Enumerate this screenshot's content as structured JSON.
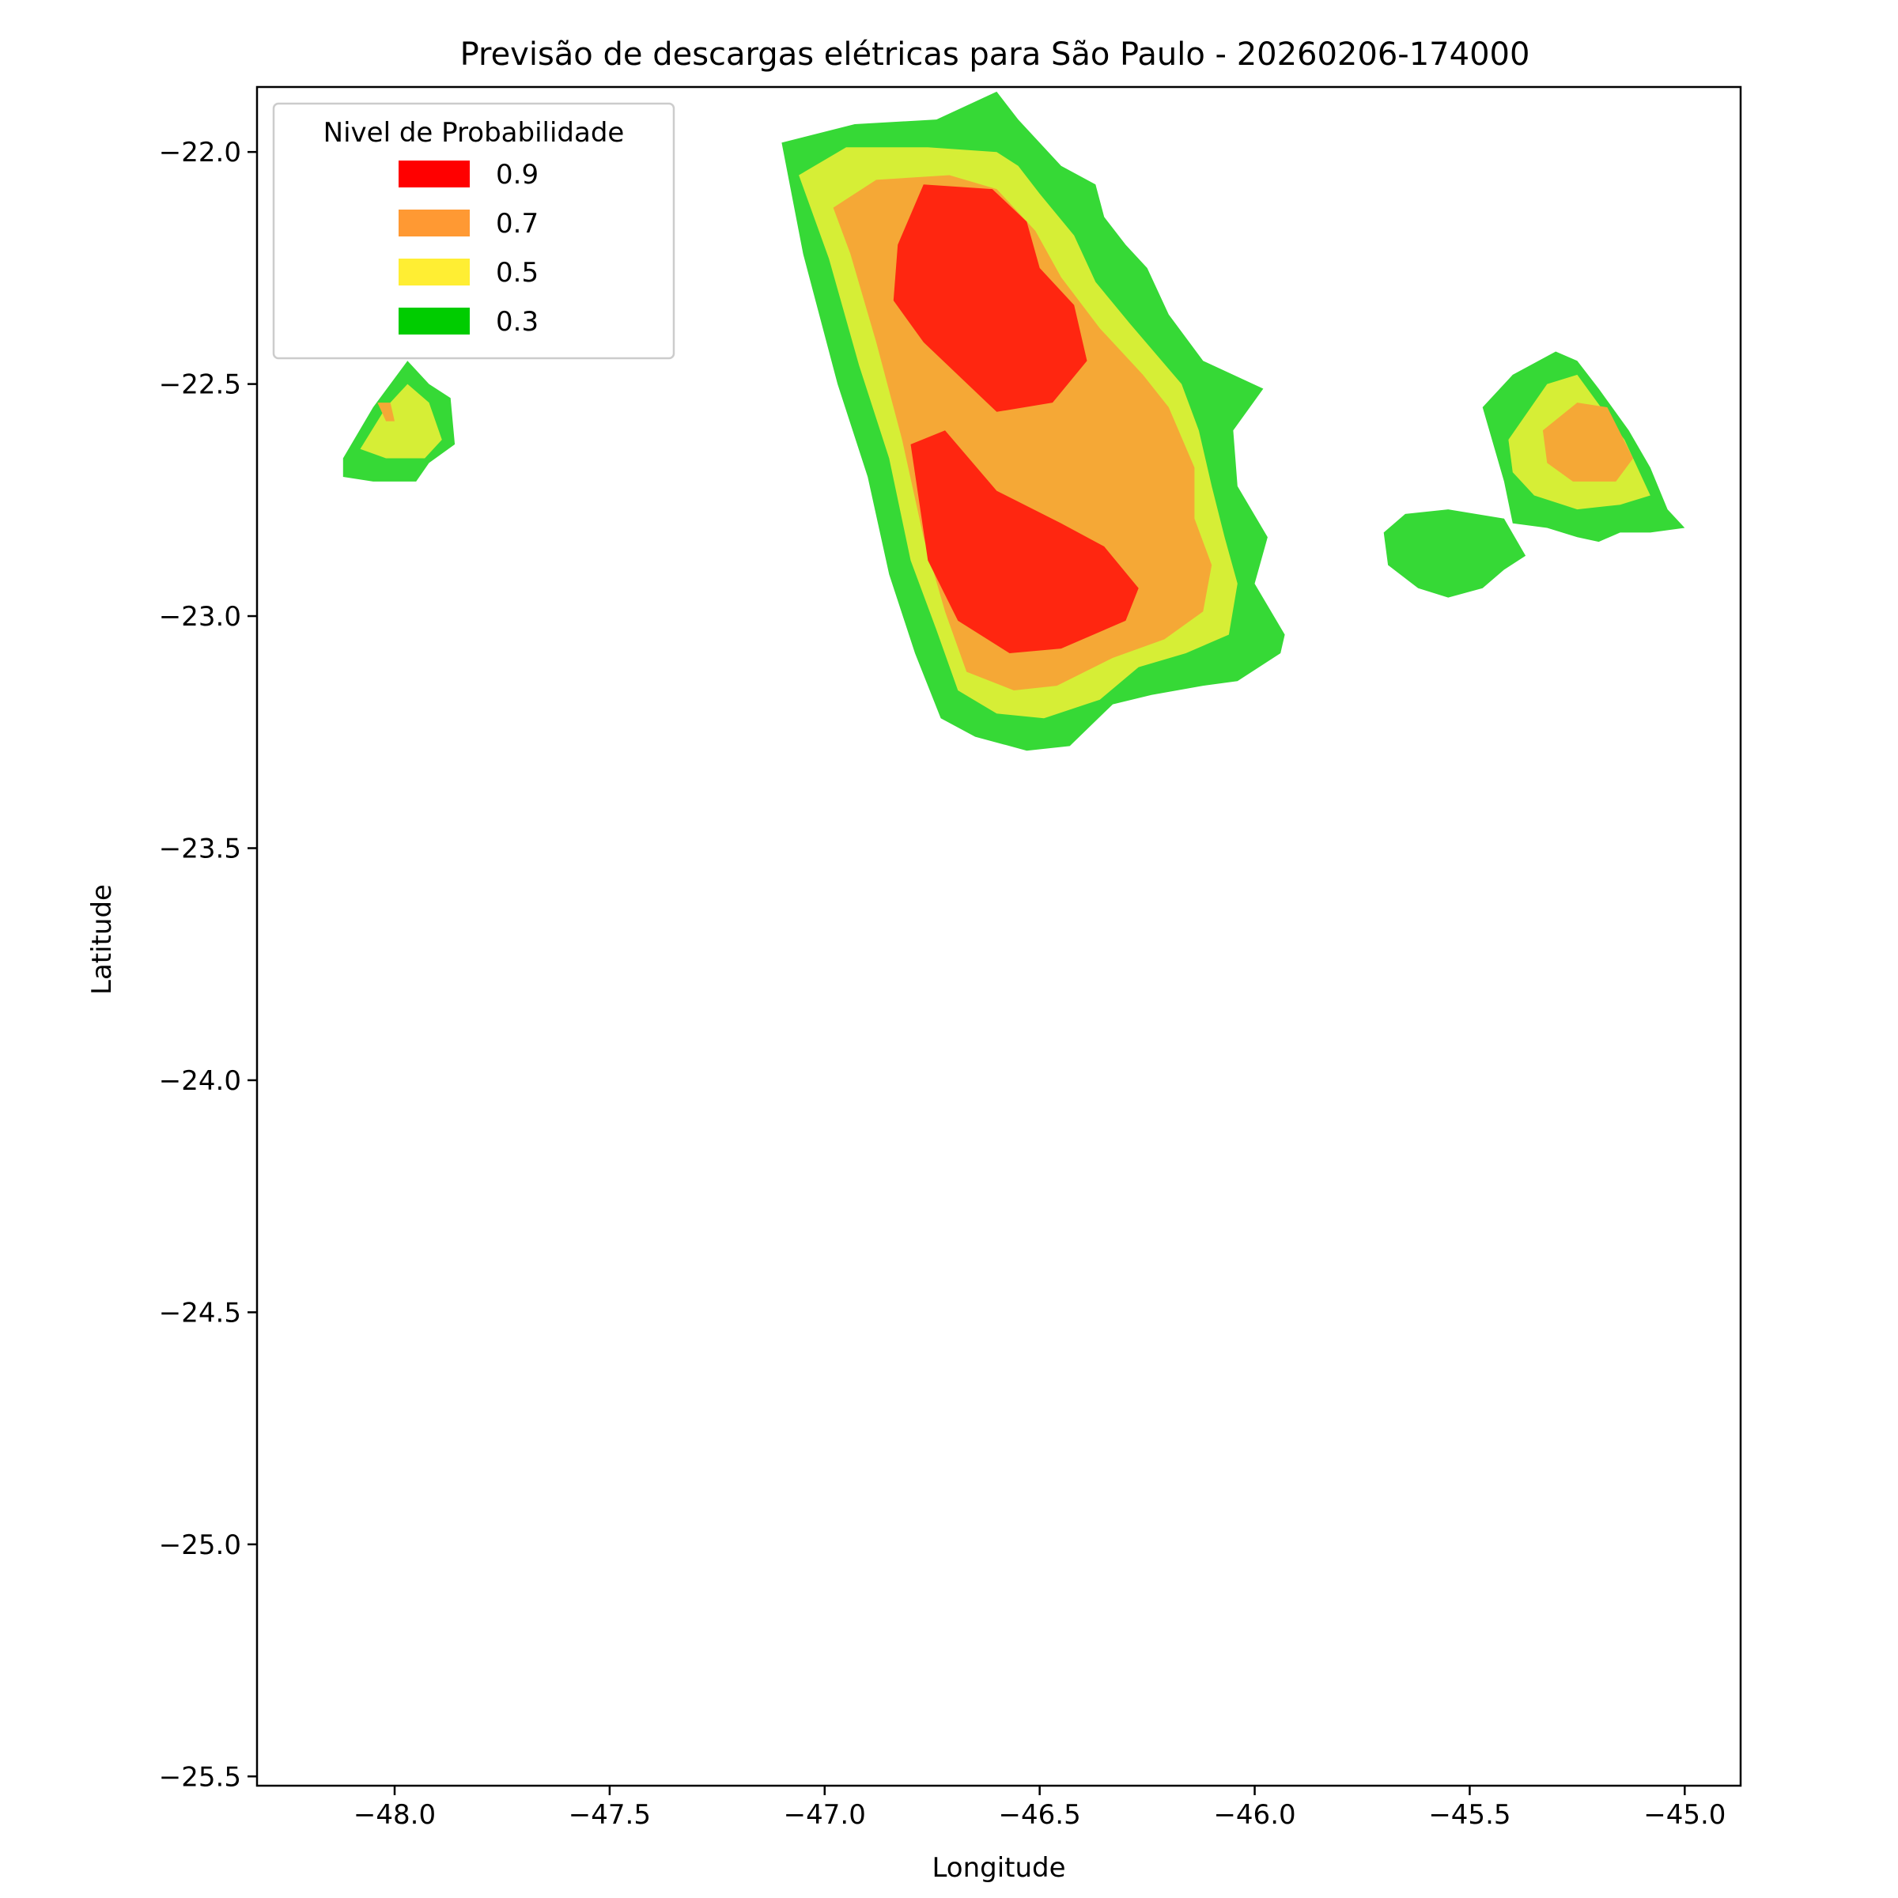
{
  "chart_data": {
    "type": "filled-contour",
    "title": "Previsão de descargas elétricas para São Paulo - 20260206-174000",
    "xlabel": "Longitude",
    "ylabel": "Latitude",
    "xlim": [
      -48.32,
      -44.87
    ],
    "ylim": [
      -25.52,
      -21.86
    ],
    "x_ticks": [
      {
        "value": -48.0,
        "label": "−48.0"
      },
      {
        "value": -47.5,
        "label": "−47.5"
      },
      {
        "value": -47.0,
        "label": "−47.0"
      },
      {
        "value": -46.5,
        "label": "−46.5"
      },
      {
        "value": -46.0,
        "label": "−46.0"
      },
      {
        "value": -45.5,
        "label": "−45.5"
      },
      {
        "value": -45.0,
        "label": "−45.0"
      }
    ],
    "y_ticks": [
      {
        "value": -22.0,
        "label": "−22.0"
      },
      {
        "value": -22.5,
        "label": "−22.5"
      },
      {
        "value": -23.0,
        "label": "−23.0"
      },
      {
        "value": -23.5,
        "label": "−23.5"
      },
      {
        "value": -24.0,
        "label": "−24.0"
      },
      {
        "value": -24.5,
        "label": "−24.5"
      },
      {
        "value": -25.0,
        "label": "−25.0"
      },
      {
        "value": -25.5,
        "label": "−25.5"
      }
    ],
    "grid": false,
    "legend": {
      "title": "Nivel de Probabilidade",
      "placement": "upper-left",
      "entries": [
        {
          "label": "0.9",
          "color": "#ff0000"
        },
        {
          "label": "0.7",
          "color": "#ff9933"
        },
        {
          "label": "0.5",
          "color": "#ffee33"
        },
        {
          "label": "0.3",
          "color": "#00cc00"
        }
      ]
    },
    "fill_colors": {
      "0.3": "#36d936",
      "0.5": "#d6ee36",
      "0.7": "#f5a836",
      "0.9": "#ff2610"
    },
    "regions": [
      {
        "level": "0.3",
        "points": [
          [
            -47.1,
            -21.98
          ],
          [
            -46.93,
            -21.94
          ],
          [
            -46.74,
            -21.93
          ],
          [
            -46.6,
            -21.87
          ],
          [
            -46.55,
            -21.93
          ],
          [
            -46.45,
            -22.03
          ],
          [
            -46.37,
            -22.07
          ],
          [
            -46.35,
            -22.14
          ],
          [
            -46.3,
            -22.2
          ],
          [
            -46.25,
            -22.25
          ],
          [
            -46.2,
            -22.35
          ],
          [
            -46.12,
            -22.45
          ],
          [
            -45.98,
            -22.51
          ],
          [
            -46.05,
            -22.6
          ],
          [
            -46.04,
            -22.72
          ],
          [
            -45.97,
            -22.83
          ],
          [
            -46.0,
            -22.93
          ],
          [
            -45.93,
            -23.04
          ],
          [
            -45.94,
            -23.08
          ],
          [
            -46.04,
            -23.14
          ],
          [
            -46.12,
            -23.15
          ],
          [
            -46.24,
            -23.17
          ],
          [
            -46.33,
            -23.19
          ],
          [
            -46.43,
            -23.28
          ],
          [
            -46.53,
            -23.29
          ],
          [
            -46.65,
            -23.26
          ],
          [
            -46.73,
            -23.22
          ],
          [
            -46.79,
            -23.08
          ],
          [
            -46.85,
            -22.91
          ],
          [
            -46.9,
            -22.7
          ],
          [
            -46.97,
            -22.5
          ],
          [
            -47.05,
            -22.22
          ]
        ]
      },
      {
        "level": "0.5",
        "points": [
          [
            -47.06,
            -22.05
          ],
          [
            -46.95,
            -21.99
          ],
          [
            -46.76,
            -21.99
          ],
          [
            -46.6,
            -22.0
          ],
          [
            -46.55,
            -22.03
          ],
          [
            -46.5,
            -22.09
          ],
          [
            -46.42,
            -22.18
          ],
          [
            -46.37,
            -22.28
          ],
          [
            -46.29,
            -22.37
          ],
          [
            -46.17,
            -22.5
          ],
          [
            -46.13,
            -22.6
          ],
          [
            -46.1,
            -22.72
          ],
          [
            -46.07,
            -22.83
          ],
          [
            -46.04,
            -22.93
          ],
          [
            -46.06,
            -23.04
          ],
          [
            -46.16,
            -23.08
          ],
          [
            -46.27,
            -23.11
          ],
          [
            -46.36,
            -23.18
          ],
          [
            -46.49,
            -23.22
          ],
          [
            -46.6,
            -23.21
          ],
          [
            -46.69,
            -23.16
          ],
          [
            -46.74,
            -23.03
          ],
          [
            -46.8,
            -22.88
          ],
          [
            -46.85,
            -22.66
          ],
          [
            -46.92,
            -22.46
          ],
          [
            -46.99,
            -22.23
          ]
        ]
      },
      {
        "level": "0.7",
        "points": [
          [
            -46.98,
            -22.12
          ],
          [
            -46.88,
            -22.06
          ],
          [
            -46.71,
            -22.05
          ],
          [
            -46.6,
            -22.08
          ],
          [
            -46.51,
            -22.17
          ],
          [
            -46.45,
            -22.27
          ],
          [
            -46.36,
            -22.38
          ],
          [
            -46.26,
            -22.48
          ],
          [
            -46.2,
            -22.55
          ],
          [
            -46.14,
            -22.68
          ],
          [
            -46.14,
            -22.79
          ],
          [
            -46.1,
            -22.89
          ],
          [
            -46.12,
            -22.99
          ],
          [
            -46.21,
            -23.05
          ],
          [
            -46.33,
            -23.09
          ],
          [
            -46.46,
            -23.15
          ],
          [
            -46.56,
            -23.16
          ],
          [
            -46.67,
            -23.12
          ],
          [
            -46.72,
            -22.99
          ],
          [
            -46.77,
            -22.83
          ],
          [
            -46.82,
            -22.62
          ],
          [
            -46.88,
            -22.41
          ],
          [
            -46.94,
            -22.22
          ]
        ]
      },
      {
        "level": "0.9",
        "points": [
          [
            -46.83,
            -22.2
          ],
          [
            -46.77,
            -22.07
          ],
          [
            -46.61,
            -22.08
          ],
          [
            -46.53,
            -22.15
          ],
          [
            -46.5,
            -22.25
          ],
          [
            -46.42,
            -22.33
          ],
          [
            -46.39,
            -22.45
          ],
          [
            -46.47,
            -22.54
          ],
          [
            -46.6,
            -22.56
          ],
          [
            -46.77,
            -22.41
          ],
          [
            -46.84,
            -22.32
          ]
        ]
      },
      {
        "level": "0.9",
        "points": [
          [
            -46.8,
            -22.63
          ],
          [
            -46.72,
            -22.6
          ],
          [
            -46.6,
            -22.73
          ],
          [
            -46.45,
            -22.8
          ],
          [
            -46.35,
            -22.85
          ],
          [
            -46.27,
            -22.94
          ],
          [
            -46.3,
            -23.01
          ],
          [
            -46.45,
            -23.07
          ],
          [
            -46.57,
            -23.08
          ],
          [
            -46.69,
            -23.01
          ],
          [
            -46.76,
            -22.88
          ]
        ]
      },
      {
        "level": "0.3",
        "points": [
          [
            -48.12,
            -22.66
          ],
          [
            -48.05,
            -22.55
          ],
          [
            -47.97,
            -22.45
          ],
          [
            -47.92,
            -22.5
          ],
          [
            -47.87,
            -22.53
          ],
          [
            -47.86,
            -22.63
          ],
          [
            -47.92,
            -22.67
          ],
          [
            -47.95,
            -22.71
          ],
          [
            -48.05,
            -22.71
          ],
          [
            -48.12,
            -22.7
          ]
        ]
      },
      {
        "level": "0.5",
        "points": [
          [
            -48.08,
            -22.64
          ],
          [
            -48.02,
            -22.55
          ],
          [
            -47.97,
            -22.5
          ],
          [
            -47.92,
            -22.54
          ],
          [
            -47.89,
            -22.62
          ],
          [
            -47.93,
            -22.66
          ],
          [
            -48.02,
            -22.66
          ]
        ]
      },
      {
        "level": "0.7",
        "points": [
          [
            -48.04,
            -22.54
          ],
          [
            -48.01,
            -22.54
          ],
          [
            -48.0,
            -22.58
          ],
          [
            -48.02,
            -22.58
          ]
        ]
      },
      {
        "level": "0.3",
        "points": [
          [
            -45.7,
            -22.82
          ],
          [
            -45.65,
            -22.78
          ],
          [
            -45.55,
            -22.77
          ],
          [
            -45.42,
            -22.79
          ],
          [
            -45.37,
            -22.87
          ],
          [
            -45.42,
            -22.9
          ],
          [
            -45.47,
            -22.94
          ],
          [
            -45.55,
            -22.96
          ],
          [
            -45.62,
            -22.94
          ],
          [
            -45.69,
            -22.89
          ]
        ]
      },
      {
        "level": "0.3",
        "points": [
          [
            -45.47,
            -22.55
          ],
          [
            -45.4,
            -22.48
          ],
          [
            -45.3,
            -22.43
          ],
          [
            -45.25,
            -22.45
          ],
          [
            -45.2,
            -22.51
          ],
          [
            -45.13,
            -22.6
          ],
          [
            -45.08,
            -22.68
          ],
          [
            -45.04,
            -22.77
          ],
          [
            -45.0,
            -22.81
          ],
          [
            -45.08,
            -22.82
          ],
          [
            -45.15,
            -22.82
          ],
          [
            -45.2,
            -22.84
          ],
          [
            -45.25,
            -22.83
          ],
          [
            -45.32,
            -22.81
          ],
          [
            -45.4,
            -22.8
          ],
          [
            -45.42,
            -22.71
          ]
        ]
      },
      {
        "level": "0.5",
        "points": [
          [
            -45.41,
            -22.62
          ],
          [
            -45.32,
            -22.5
          ],
          [
            -45.25,
            -22.48
          ],
          [
            -45.14,
            -22.62
          ],
          [
            -45.08,
            -22.74
          ],
          [
            -45.15,
            -22.76
          ],
          [
            -45.25,
            -22.77
          ],
          [
            -45.35,
            -22.74
          ],
          [
            -45.4,
            -22.69
          ]
        ]
      },
      {
        "level": "0.7",
        "points": [
          [
            -45.33,
            -22.6
          ],
          [
            -45.25,
            -22.54
          ],
          [
            -45.18,
            -22.55
          ],
          [
            -45.12,
            -22.66
          ],
          [
            -45.16,
            -22.71
          ],
          [
            -45.26,
            -22.71
          ],
          [
            -45.32,
            -22.67
          ]
        ]
      }
    ]
  }
}
